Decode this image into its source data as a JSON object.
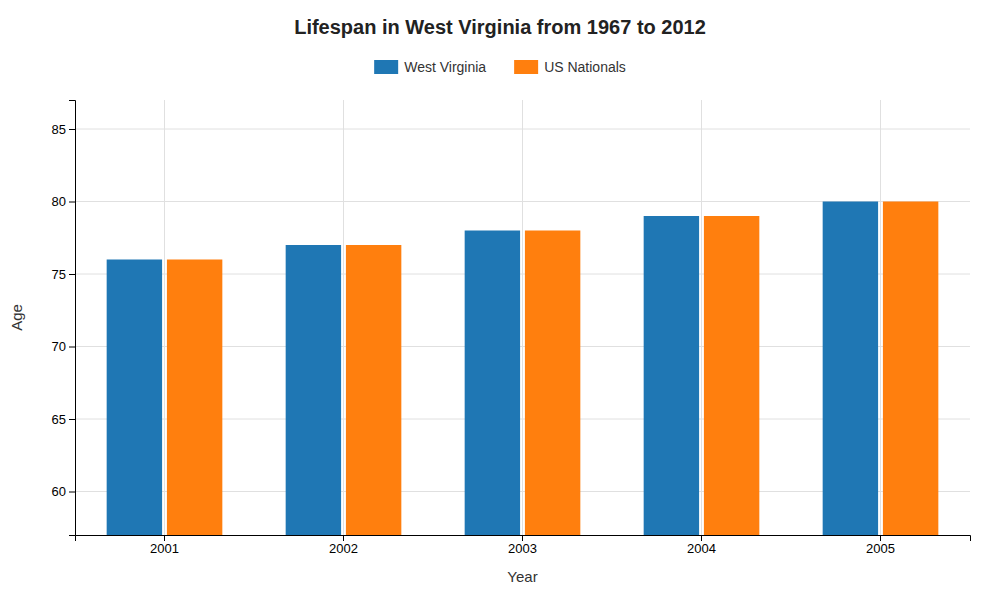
{
  "chart_data": {
    "type": "bar",
    "title": "Lifespan in West Virginia from 1967 to 2012",
    "xlabel": "Year",
    "ylabel": "Age",
    "categories": [
      "2001",
      "2002",
      "2003",
      "2004",
      "2005"
    ],
    "series": [
      {
        "name": "West Virginia",
        "values": [
          76,
          77,
          78,
          79,
          80
        ]
      },
      {
        "name": "US Nationals",
        "values": [
          76,
          77,
          78,
          79,
          80
        ]
      }
    ],
    "ylim": [
      57,
      87
    ],
    "yticks": [
      60,
      65,
      70,
      75,
      80,
      85
    ],
    "grid": true,
    "legend": "top"
  }
}
